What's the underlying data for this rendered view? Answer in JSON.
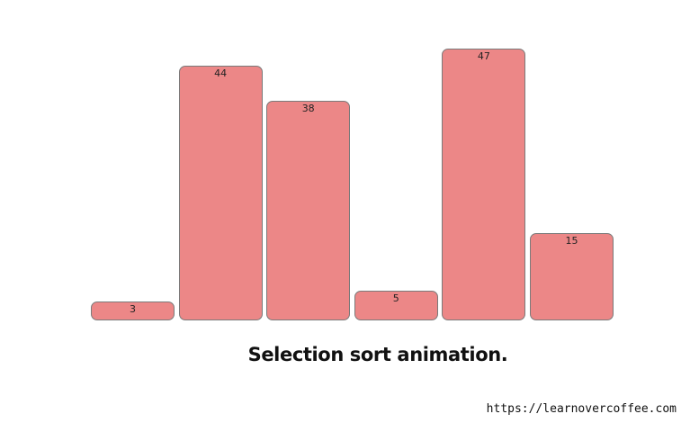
{
  "chart_data": {
    "type": "bar",
    "values": [
      3,
      44,
      38,
      5,
      47,
      15
    ],
    "bar_color": "#ec8787",
    "border_color": "#7a7a7a",
    "data_labels": true,
    "grid": false,
    "legend": false
  },
  "caption": "Selection sort animation.",
  "credit": "https://learnovercoffee.com"
}
